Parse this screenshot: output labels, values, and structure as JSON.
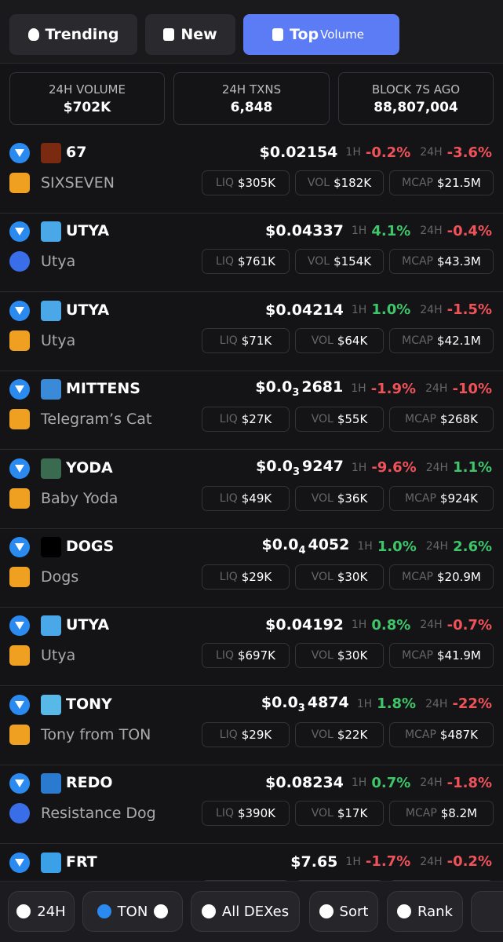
{
  "tabs": [
    {
      "label": "Trending"
    },
    {
      "label": "New"
    },
    {
      "label": "Top",
      "sublabel": "Volume"
    }
  ],
  "stats": [
    {
      "label": "24H VOLUME",
      "value": "$702K"
    },
    {
      "label": "24H TXNS",
      "value": "6,848"
    },
    {
      "label": "BLOCK 7S AGO",
      "value": "88,807,004"
    }
  ],
  "labels": {
    "h1": "1H",
    "h24": "24H",
    "liq": "LIQ",
    "vol": "VOL",
    "mcap": "MCAP"
  },
  "tokens": [
    {
      "symbol": "67",
      "name": "SIXSEVEN",
      "price": "$0.02154",
      "change_1h": "-0.2%",
      "change_24h": "-3.6%",
      "liq": "$305K",
      "vol": "$182K",
      "mcap": "$21.5M",
      "avatar_color": "#7a2a10",
      "dex_color": "#f0a020"
    },
    {
      "symbol": "UTYA",
      "name": "Utya",
      "price": "$0.04337",
      "change_1h": "4.1%",
      "change_24h": "-0.4%",
      "liq": "$761K",
      "vol": "$154K",
      "mcap": "$43.3M",
      "avatar_color": "#4aa8e8",
      "dex_color": "#3a6ee8"
    },
    {
      "symbol": "UTYA",
      "name": "Utya",
      "price": "$0.04214",
      "change_1h": "1.0%",
      "change_24h": "-1.5%",
      "liq": "$71K",
      "vol": "$64K",
      "mcap": "$42.1M",
      "avatar_color": "#4aa8e8",
      "dex_color": "#f0a020"
    },
    {
      "symbol": "MITTENS",
      "name": "Telegram’s Cat",
      "price": {
        "lead": "$0.0",
        "zeros": "3",
        "tail": "2681"
      },
      "change_1h": "-1.9%",
      "change_24h": "-10%",
      "liq": "$27K",
      "vol": "$55K",
      "mcap": "$268K",
      "avatar_color": "#3a8ad8",
      "dex_color": "#f0a020"
    },
    {
      "symbol": "YODA",
      "name": "Baby Yoda",
      "price": {
        "lead": "$0.0",
        "zeros": "3",
        "tail": "9247"
      },
      "change_1h": "-9.6%",
      "change_24h": "1.1%",
      "liq": "$49K",
      "vol": "$36K",
      "mcap": "$924K",
      "avatar_color": "#3a6a50",
      "dex_color": "#f0a020"
    },
    {
      "symbol": "DOGS",
      "name": "Dogs",
      "price": {
        "lead": "$0.0",
        "zeros": "4",
        "tail": "4052"
      },
      "change_1h": "1.0%",
      "change_24h": "2.6%",
      "liq": "$29K",
      "vol": "$30K",
      "mcap": "$20.9M",
      "avatar_color": "#000000",
      "dex_color": "#f0a020"
    },
    {
      "symbol": "UTYA",
      "name": "Utya",
      "price": "$0.04192",
      "change_1h": "0.8%",
      "change_24h": "-0.7%",
      "liq": "$697K",
      "vol": "$30K",
      "mcap": "$41.9M",
      "avatar_color": "#4aa8e8",
      "dex_color": "#f0a020"
    },
    {
      "symbol": "TONY",
      "name": "Tony from TON",
      "price": {
        "lead": "$0.0",
        "zeros": "3",
        "tail": "4874"
      },
      "change_1h": "1.8%",
      "change_24h": "-22%",
      "liq": "$29K",
      "vol": "$22K",
      "mcap": "$487K",
      "avatar_color": "#58b8e8",
      "dex_color": "#f0a020"
    },
    {
      "symbol": "REDO",
      "name": "Resistance Dog",
      "price": "$0.08234",
      "change_1h": "0.7%",
      "change_24h": "-1.8%",
      "liq": "$390K",
      "vol": "$17K",
      "mcap": "$8.2M",
      "avatar_color": "#2a7ad0",
      "dex_color": "#3a6ee8"
    },
    {
      "symbol": "FRT",
      "price": "$7.65",
      "change_1h": "-1.7%",
      "change_24h": "-0.2%",
      "avatar_color": "#3aa0e8"
    }
  ],
  "filters": [
    {
      "label": "24H"
    },
    {
      "label": "TON"
    },
    {
      "label": "All DEXes"
    },
    {
      "label": "Sort"
    },
    {
      "label": "Rank"
    }
  ]
}
